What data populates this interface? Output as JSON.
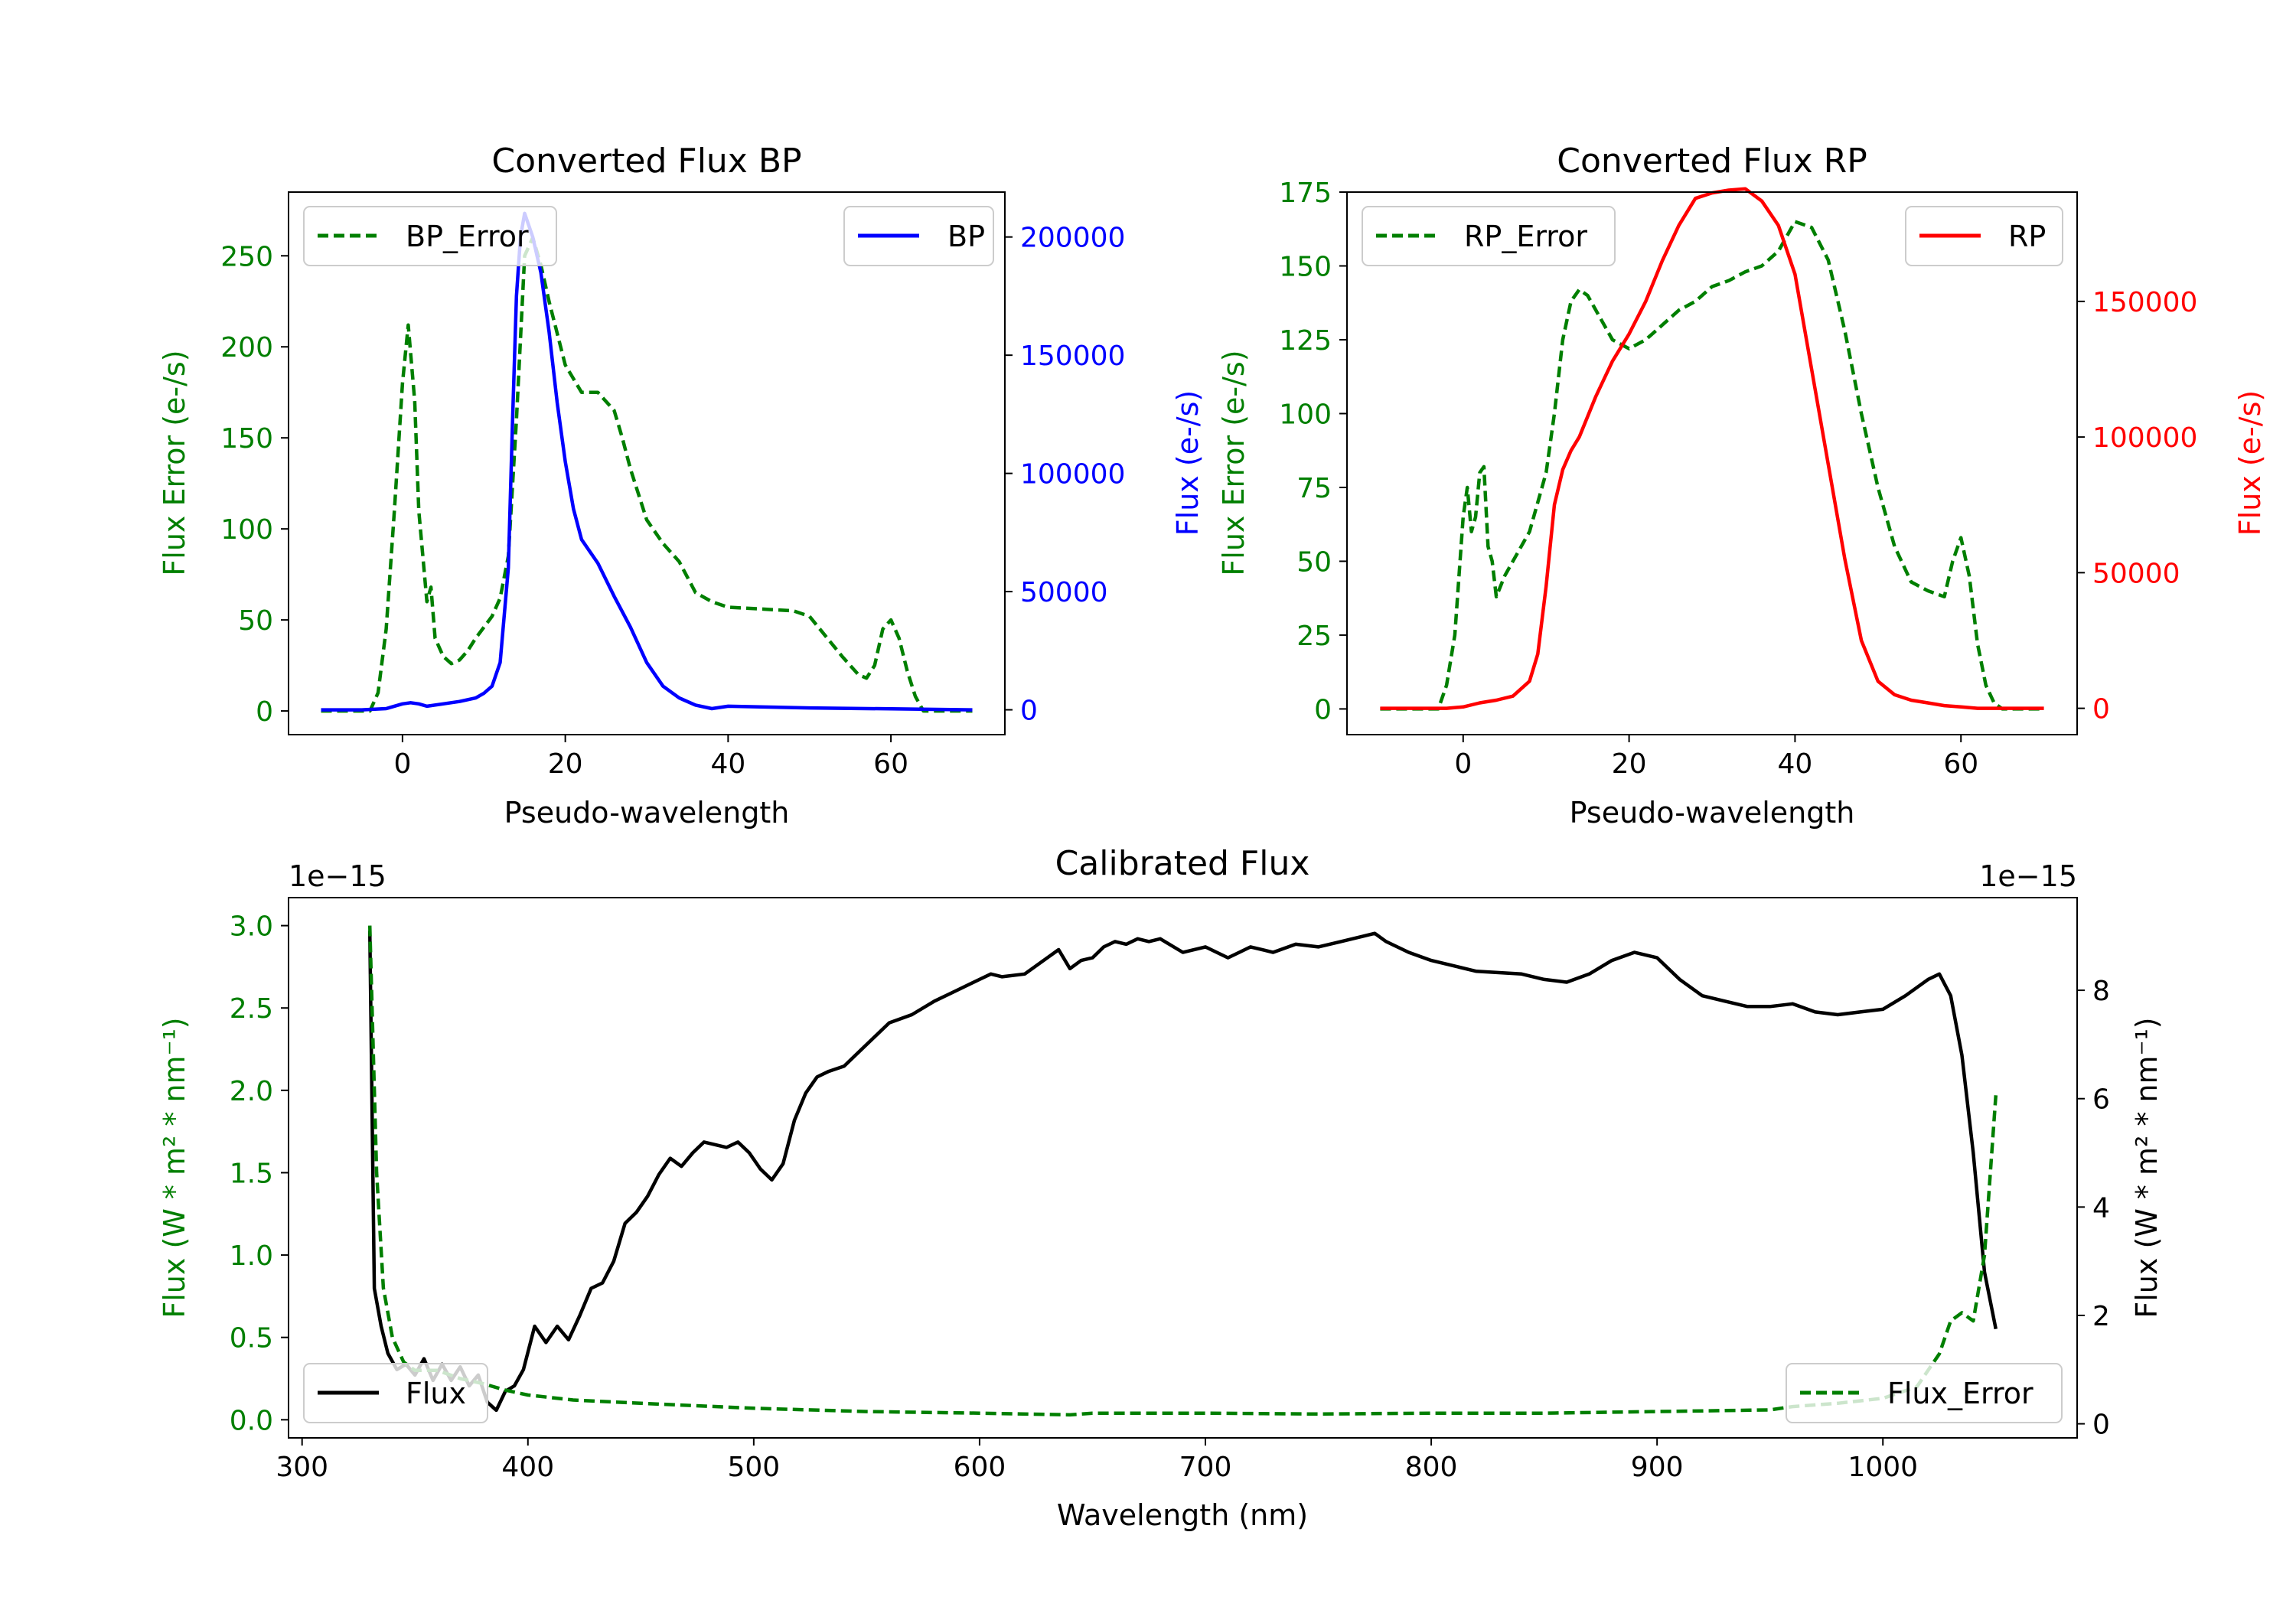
{
  "colors": {
    "bp": "#0000ff",
    "rp": "#ff0000",
    "error": "#007f00",
    "flux": "#000000",
    "axis": "#000000",
    "legend_border": "#cccccc"
  },
  "chart_data": [
    {
      "id": "bp",
      "type": "line",
      "title": "Converted Flux BP",
      "xlabel": "Pseudo-wavelength",
      "ylabel_left": "Flux Error (e-/s)",
      "ylabel_right": "Flux (e-/s)",
      "xlim": [
        -14,
        74
      ],
      "ylim_left": [
        -13,
        285
      ],
      "ylim_right": [
        -10500,
        219000
      ],
      "xticks": [
        0,
        20,
        40,
        60
      ],
      "xtick_labels": [
        "0",
        "20",
        "40",
        "60"
      ],
      "yticks_left": [
        0,
        50,
        100,
        150,
        200,
        250
      ],
      "ytick_labels_left": [
        "0",
        "50",
        "100",
        "150",
        "200",
        "250"
      ],
      "yticks_right": [
        0,
        50000,
        100000,
        150000,
        200000
      ],
      "ytick_labels_right": [
        "0",
        "50000",
        "100000",
        "150000",
        "200000"
      ],
      "legend_left": "BP_Error",
      "legend_right": "BP",
      "series": [
        {
          "name": "BP_Error",
          "axis": "left",
          "style": "dashed",
          "x": [
            -10,
            -4,
            -3,
            -2,
            -1,
            0,
            0.7,
            1.5,
            2,
            3,
            3.5,
            4,
            5,
            6,
            7,
            8,
            9,
            10,
            11,
            12,
            13,
            14,
            15,
            16,
            17,
            18,
            20,
            22,
            24,
            26,
            27,
            28,
            30,
            32,
            34,
            36,
            38,
            40,
            44,
            48,
            50,
            54,
            56,
            57,
            58,
            59,
            60,
            61,
            62,
            63,
            64,
            70
          ],
          "y": [
            0,
            0,
            10,
            45,
            110,
            180,
            212,
            170,
            110,
            60,
            68,
            40,
            30,
            26,
            28,
            33,
            40,
            46,
            52,
            62,
            85,
            160,
            250,
            260,
            245,
            225,
            190,
            175,
            175,
            165,
            150,
            133,
            105,
            92,
            82,
            65,
            60,
            57,
            56,
            55,
            52,
            30,
            20,
            18,
            25,
            45,
            50,
            40,
            22,
            8,
            0,
            0
          ]
        },
        {
          "name": "BP",
          "axis": "right",
          "style": "solid",
          "x": [
            -10,
            -5,
            -2,
            0,
            1,
            2,
            3,
            5,
            7,
            9,
            10,
            11,
            12,
            13,
            13.5,
            14,
            14.5,
            15,
            15.5,
            16,
            17,
            18,
            19,
            20,
            21,
            22,
            24,
            26,
            28,
            30,
            32,
            34,
            36,
            38,
            40,
            50,
            60,
            70
          ],
          "y": [
            0,
            0,
            500,
            2500,
            3000,
            2500,
            1500,
            2500,
            3500,
            5000,
            7000,
            10000,
            20000,
            60000,
            120000,
            175000,
            200000,
            210000,
            205000,
            200000,
            185000,
            160000,
            130000,
            105000,
            85000,
            72000,
            62000,
            48000,
            35000,
            20000,
            10000,
            5000,
            2000,
            500,
            1500,
            800,
            400,
            0
          ]
        }
      ]
    },
    {
      "id": "rp",
      "type": "line",
      "title": "Converted Flux RP",
      "xlabel": "Pseudo-wavelength",
      "ylabel_left": "Flux Error (e-/s)",
      "ylabel_right": "Flux (e-/s)",
      "xlim": [
        -14,
        74
      ],
      "ylim_left": [
        -8.7,
        175
      ],
      "ylim_right": [
        -9700,
        190300
      ],
      "xticks": [
        0,
        20,
        40,
        60
      ],
      "xtick_labels": [
        "0",
        "20",
        "40",
        "60"
      ],
      "yticks_left": [
        0,
        25,
        50,
        75,
        100,
        125,
        150,
        175
      ],
      "ytick_labels_left": [
        "0",
        "25",
        "50",
        "75",
        "100",
        "125",
        "150",
        "175"
      ],
      "yticks_right": [
        0,
        50000,
        100000,
        150000
      ],
      "ytick_labels_right": [
        "0",
        "50000",
        "100000",
        "150000"
      ],
      "legend_left": "RP_Error",
      "legend_right": "RP",
      "series": [
        {
          "name": "RP_Error",
          "axis": "left",
          "style": "dashed",
          "x": [
            -10,
            -3,
            -2,
            -1,
            0,
            0.5,
            1,
            1.5,
            2,
            2.5,
            3,
            3.5,
            4,
            5,
            6,
            8,
            10,
            11,
            12,
            13,
            14,
            15,
            16,
            18,
            20,
            22,
            24,
            26,
            28,
            30,
            32,
            34,
            36,
            38,
            40,
            42,
            44,
            46,
            48,
            50,
            52,
            54,
            56,
            58,
            59,
            60,
            61,
            62,
            63,
            64,
            65,
            70
          ],
          "y": [
            0,
            0,
            8,
            25,
            65,
            75,
            60,
            65,
            80,
            82,
            55,
            50,
            38,
            45,
            50,
            60,
            80,
            100,
            125,
            138,
            142,
            140,
            135,
            125,
            122,
            125,
            130,
            135,
            138,
            143,
            145,
            148,
            150,
            155,
            165,
            163,
            152,
            128,
            100,
            75,
            55,
            43,
            40,
            38,
            50,
            58,
            45,
            22,
            8,
            2,
            0,
            0
          ]
        },
        {
          "name": "RP",
          "axis": "right",
          "style": "solid",
          "x": [
            -10,
            -2,
            0,
            2,
            4,
            6,
            8,
            9,
            10,
            11,
            12,
            13,
            14,
            16,
            18,
            20,
            22,
            24,
            26,
            28,
            30,
            32,
            34,
            36,
            38,
            40,
            42,
            44,
            46,
            48,
            50,
            52,
            54,
            56,
            58,
            60,
            62,
            64,
            70
          ],
          "y": [
            0,
            0,
            500,
            2000,
            3000,
            4500,
            10000,
            20000,
            45000,
            75000,
            88000,
            95000,
            100000,
            115000,
            128000,
            138000,
            150000,
            165000,
            178000,
            188000,
            190000,
            191000,
            191500,
            187000,
            178000,
            160000,
            125000,
            90000,
            55000,
            25000,
            10000,
            5000,
            3000,
            2000,
            1000,
            500,
            0,
            0,
            0
          ]
        }
      ]
    },
    {
      "id": "calibrated",
      "type": "line",
      "title": "Calibrated Flux",
      "xlabel": "Wavelength (nm)",
      "ylabel_left": "Flux (W * m² * nm⁻¹)",
      "ylabel_right": "Flux (W * m² * nm⁻¹)",
      "xlim": [
        294,
        1086
      ],
      "ylim_left": [
        -0.11,
        3.17
      ],
      "ylim_right": [
        -0.26,
        9.71
      ],
      "xticks": [
        300,
        400,
        500,
        600,
        700,
        800,
        900,
        1000
      ],
      "xtick_labels": [
        "300",
        "400",
        "500",
        "600",
        "700",
        "800",
        "900",
        "1000"
      ],
      "yticks_left": [
        0,
        0.5,
        1.0,
        1.5,
        2.0,
        2.5,
        3.0
      ],
      "ytick_labels_left": [
        "0.0",
        "0.5",
        "1.0",
        "1.5",
        "2.0",
        "2.5",
        "3.0"
      ],
      "yticks_right": [
        0,
        2,
        4,
        6,
        8
      ],
      "ytick_labels_right": [
        "0",
        "2",
        "4",
        "6",
        "8"
      ],
      "offset_left": "1e−15",
      "offset_right": "1e−15",
      "legend_left": "Flux",
      "legend_right": "Flux_Error",
      "series": [
        {
          "name": "Flux_Error",
          "axis": "left",
          "style": "dashed",
          "x": [
            330,
            333,
            336,
            340,
            345,
            350,
            360,
            370,
            380,
            390,
            400,
            420,
            450,
            500,
            550,
            600,
            640,
            650,
            700,
            750,
            800,
            850,
            900,
            950,
            960,
            980,
            1000,
            1015,
            1025,
            1030,
            1035,
            1040,
            1045,
            1050
          ],
          "y": [
            3.0,
            1.5,
            0.8,
            0.5,
            0.35,
            0.3,
            0.3,
            0.25,
            0.22,
            0.18,
            0.15,
            0.12,
            0.1,
            0.07,
            0.05,
            0.04,
            0.03,
            0.04,
            0.04,
            0.035,
            0.04,
            0.04,
            0.05,
            0.06,
            0.08,
            0.1,
            0.13,
            0.2,
            0.4,
            0.6,
            0.65,
            0.6,
            1.0,
            1.97
          ]
        },
        {
          "name": "Flux",
          "axis": "right",
          "style": "solid",
          "x": [
            330,
            332,
            335,
            338,
            342,
            346,
            350,
            354,
            358,
            362,
            366,
            370,
            374,
            378,
            382,
            386,
            390,
            394,
            398,
            403,
            408,
            413,
            418,
            423,
            428,
            433,
            438,
            443,
            448,
            453,
            458,
            463,
            468,
            473,
            478,
            483,
            488,
            493,
            498,
            503,
            508,
            513,
            518,
            523,
            528,
            533,
            540,
            550,
            560,
            570,
            580,
            590,
            600,
            605,
            610,
            620,
            630,
            635,
            640,
            645,
            650,
            655,
            660,
            665,
            670,
            675,
            680,
            690,
            700,
            710,
            715,
            720,
            730,
            740,
            750,
            760,
            770,
            775,
            780,
            790,
            800,
            820,
            840,
            850,
            860,
            870,
            880,
            890,
            900,
            910,
            920,
            930,
            940,
            950,
            960,
            970,
            980,
            990,
            1000,
            1010,
            1020,
            1025,
            1030,
            1035,
            1040,
            1045,
            1050
          ],
          "y": [
            9.1,
            2.5,
            1.8,
            1.3,
            1.0,
            1.1,
            0.9,
            1.2,
            0.8,
            1.1,
            0.8,
            1.05,
            0.7,
            0.9,
            0.4,
            0.25,
            0.6,
            0.7,
            1.0,
            1.8,
            1.5,
            1.8,
            1.55,
            2.0,
            2.5,
            2.6,
            3.0,
            3.7,
            3.9,
            4.2,
            4.6,
            4.9,
            4.75,
            5.0,
            5.2,
            5.15,
            5.1,
            5.2,
            5.0,
            4.7,
            4.5,
            4.8,
            5.6,
            6.1,
            6.4,
            6.5,
            6.6,
            7.0,
            7.4,
            7.55,
            7.8,
            8.0,
            8.2,
            8.3,
            8.25,
            8.3,
            8.6,
            8.75,
            8.4,
            8.55,
            8.6,
            8.8,
            8.9,
            8.85,
            8.95,
            8.9,
            8.95,
            8.7,
            8.8,
            8.6,
            8.7,
            8.8,
            8.7,
            8.85,
            8.8,
            8.9,
            9.0,
            9.05,
            8.9,
            8.7,
            8.55,
            8.35,
            8.3,
            8.2,
            8.15,
            8.3,
            8.55,
            8.7,
            8.6,
            8.2,
            7.9,
            7.8,
            7.7,
            7.7,
            7.75,
            7.6,
            7.55,
            7.6,
            7.65,
            7.9,
            8.2,
            8.3,
            7.9,
            6.8,
            5.0,
            2.8,
            1.75
          ]
        }
      ]
    }
  ]
}
